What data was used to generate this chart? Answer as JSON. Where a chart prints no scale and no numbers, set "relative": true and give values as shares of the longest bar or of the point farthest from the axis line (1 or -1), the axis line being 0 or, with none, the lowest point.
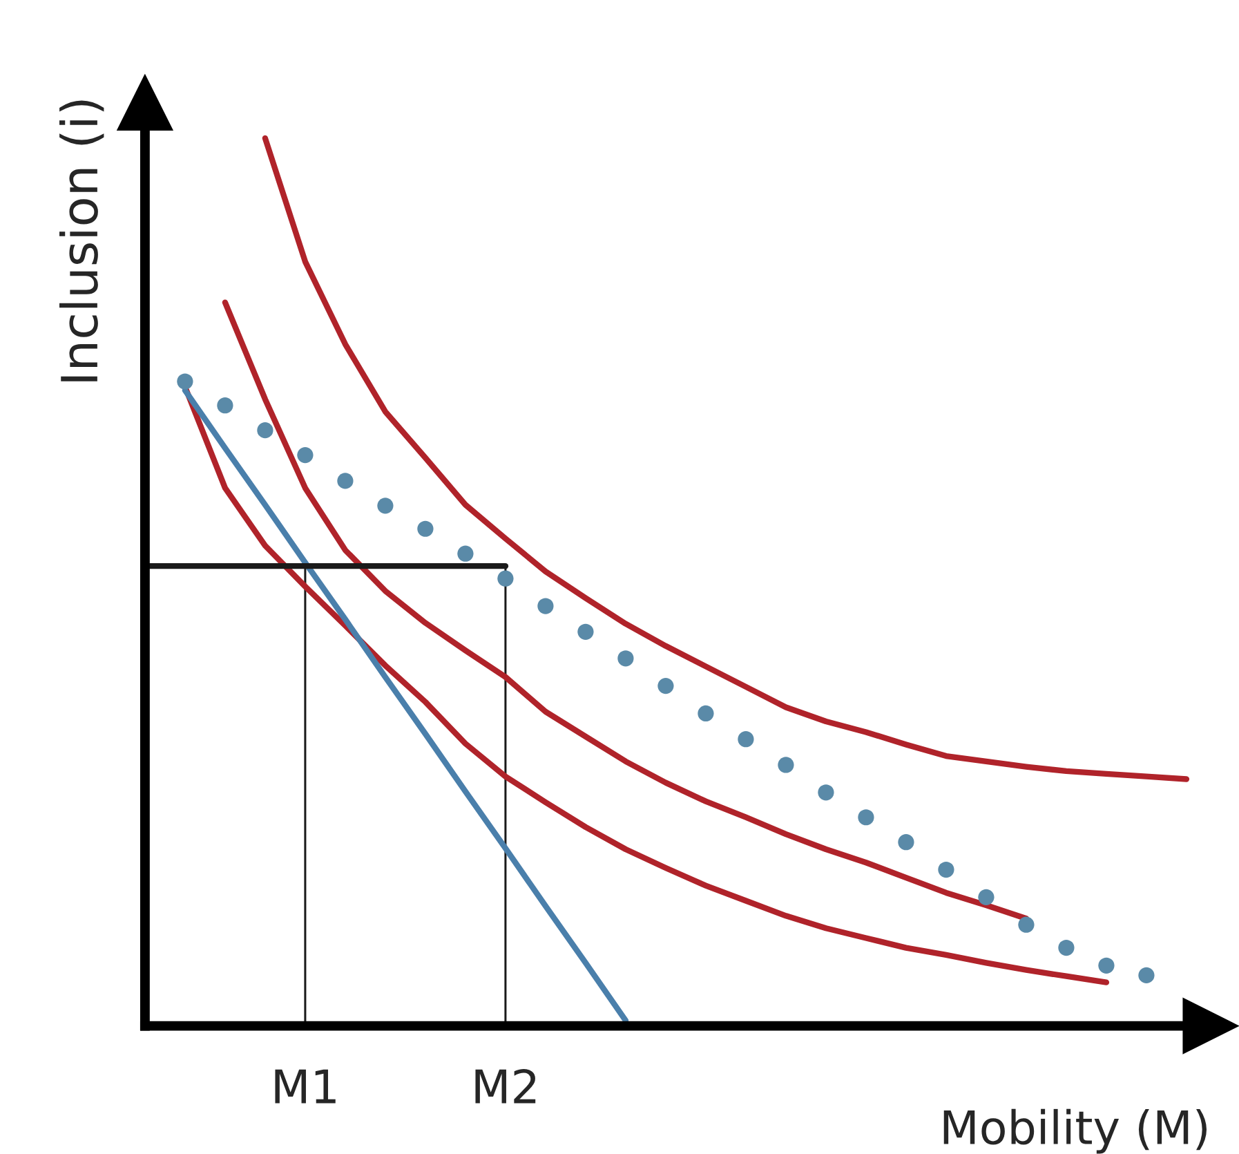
{
  "chart_data": {
    "type": "line",
    "relative": true,
    "xlabel": "Mobility (M)",
    "ylabel": "Inclusion (i)",
    "categories": [
      null,
      null,
      null,
      null,
      "M1",
      null,
      null,
      null,
      null,
      "M2",
      null,
      null,
      null,
      null,
      null,
      null,
      null,
      null,
      null,
      null,
      null,
      null,
      null,
      null,
      null,
      null,
      null
    ],
    "grid": false,
    "legend": false,
    "series": [
      {
        "color": "#b0232a",
        "line_style": "solid",
        "values": [
          null,
          null,
          null,
          1.0,
          0.861,
          0.768,
          0.692,
          0.64,
          0.587,
          0.549,
          0.512,
          0.482,
          0.453,
          0.428,
          0.405,
          0.382,
          0.359,
          0.343,
          0.331,
          0.317,
          0.304,
          0.298,
          0.292,
          0.287,
          0.284,
          0.281,
          0.278
        ]
      },
      {
        "color": "#b0232a",
        "line_style": "solid",
        "values": [
          null,
          null,
          0.815,
          0.706,
          0.606,
          0.536,
          0.49,
          0.454,
          0.423,
          0.393,
          0.354,
          0.326,
          0.298,
          0.274,
          0.253,
          0.235,
          0.216,
          0.199,
          0.184,
          0.167,
          0.15,
          0.136,
          0.121,
          null,
          null,
          null,
          null
        ]
      },
      {
        "color": "#b0232a",
        "line_style": "solid",
        "values": [
          null,
          0.72,
          0.606,
          0.541,
          0.495,
          0.451,
          0.406,
          0.365,
          0.318,
          0.281,
          0.252,
          0.224,
          0.199,
          0.178,
          0.158,
          0.141,
          0.124,
          0.11,
          0.099,
          0.088,
          0.08,
          0.071,
          0.063,
          0.056,
          0.049,
          null,
          null
        ]
      },
      {
        "color": "#4a7fab",
        "line_style": "solid",
        "values": [
          null,
          0.716,
          0.651,
          0.587,
          0.522,
          0.458,
          0.393,
          0.329,
          0.264,
          0.2,
          0.135,
          0.071,
          0.006,
          null,
          null,
          null,
          null,
          null,
          null,
          null,
          null,
          null,
          null,
          null,
          null,
          null,
          null
        ]
      },
      {
        "type": "scatter",
        "color": "#5a8aa8",
        "values": [
          null,
          0.726,
          0.699,
          0.671,
          0.643,
          0.614,
          0.586,
          0.56,
          0.532,
          0.504,
          0.473,
          0.444,
          0.414,
          0.383,
          0.352,
          0.323,
          0.294,
          0.263,
          0.235,
          0.207,
          0.176,
          0.145,
          0.114,
          0.088,
          0.068,
          0.057,
          null
        ]
      },
      {
        "color": "#1a1a1a",
        "line_style": "solid",
        "values": [
          0.518,
          0.518,
          0.518,
          0.518,
          0.518,
          0.518,
          0.518,
          0.518,
          0.518,
          0.518,
          null,
          null,
          null,
          null,
          null,
          null,
          null,
          null,
          null,
          null,
          null,
          null,
          null,
          null,
          null,
          null,
          null
        ]
      },
      {
        "type": "bar",
        "color": "#1a1a1a",
        "values": [
          null,
          null,
          null,
          null,
          0.518,
          null,
          null,
          null,
          null,
          0.518,
          null,
          null,
          null,
          null,
          null,
          null,
          null,
          null,
          null,
          null,
          null,
          null,
          null,
          null,
          null,
          null,
          null
        ]
      }
    ]
  }
}
